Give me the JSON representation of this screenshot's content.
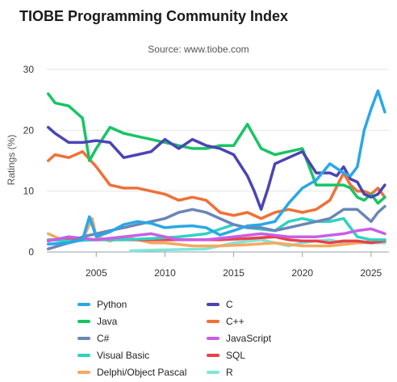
{
  "chart_data": {
    "type": "line",
    "title": "TIOBE Programming Community Index",
    "subtitle": "Source: www.tiobe.com",
    "xlabel": "",
    "ylabel": "Ratings (%)",
    "xlim": [
      2001.4,
      2026.3
    ],
    "ylim": [
      0,
      30
    ],
    "x_ticks": [
      2005,
      2010,
      2015,
      2020,
      2025
    ],
    "y_ticks": [
      0,
      10,
      20,
      30
    ],
    "grid": "horizontal",
    "legend_position": "bottom",
    "series": [
      {
        "name": "Python",
        "color": "#2aa7e8",
        "x": [
          2001.5,
          2003,
          2004,
          2004.5,
          2005,
          2006,
          2007,
          2008,
          2009,
          2010,
          2011,
          2012,
          2013,
          2014,
          2015,
          2016,
          2017,
          2018,
          2019,
          2020,
          2021,
          2022,
          2023,
          2023.5,
          2024,
          2024.5,
          2025,
          2025.5,
          2026
        ],
        "y": [
          1.3,
          1.5,
          2.0,
          5.8,
          2.5,
          3.3,
          4.5,
          5.0,
          4.7,
          4.0,
          4.2,
          4.3,
          4.0,
          2.8,
          3.5,
          4.3,
          4.5,
          5.0,
          8.0,
          10.5,
          11.8,
          14.5,
          13.0,
          12.5,
          14.0,
          20.0,
          23.5,
          26.5,
          23.0
        ]
      },
      {
        "name": "C",
        "color": "#4b44b5",
        "x": [
          2001.5,
          2002,
          2003,
          2004,
          2005,
          2006,
          2007,
          2008,
          2009,
          2010,
          2011,
          2012,
          2013,
          2014,
          2015,
          2016,
          2016.5,
          2017,
          2017.5,
          2018,
          2019,
          2020,
          2021,
          2022,
          2022.5,
          2023,
          2023.5,
          2024,
          2024.5,
          2025,
          2025.5,
          2026
        ],
        "y": [
          20.5,
          19.5,
          18.0,
          18.0,
          18.3,
          18.0,
          15.5,
          16.0,
          16.5,
          18.5,
          17.0,
          18.5,
          17.5,
          17.0,
          16.0,
          12.5,
          10.0,
          7.0,
          10.5,
          14.5,
          15.5,
          16.5,
          13.0,
          13.0,
          12.5,
          14.0,
          12.0,
          11.5,
          9.5,
          9.0,
          9.5,
          11.0
        ]
      },
      {
        "name": "Java",
        "color": "#18c464",
        "x": [
          2001.5,
          2002,
          2003,
          2004,
          2004.5,
          2005,
          2006,
          2007,
          2008,
          2009,
          2010,
          2011,
          2012,
          2013,
          2014,
          2015,
          2016,
          2017,
          2018,
          2019,
          2020,
          2021,
          2022,
          2023,
          2023.5,
          2024,
          2024.5,
          2025,
          2025.5,
          2026
        ],
        "y": [
          26.0,
          24.5,
          24.0,
          22.0,
          15.0,
          17.0,
          20.5,
          19.5,
          19.0,
          18.5,
          18.0,
          17.5,
          17.0,
          17.0,
          17.5,
          17.5,
          21.0,
          17.0,
          16.0,
          16.5,
          17.0,
          11.0,
          11.0,
          11.0,
          10.5,
          9.0,
          8.5,
          9.5,
          8.0,
          9.0
        ]
      },
      {
        "name": "C++",
        "color": "#f07036",
        "x": [
          2001.5,
          2002,
          2003,
          2004,
          2005,
          2006,
          2007,
          2008,
          2009,
          2010,
          2011,
          2012,
          2013,
          2014,
          2015,
          2016,
          2017,
          2018,
          2019,
          2020,
          2021,
          2022,
          2023,
          2023.5,
          2024,
          2024.5,
          2025,
          2025.5,
          2026
        ],
        "y": [
          15.0,
          16.0,
          15.5,
          16.5,
          14.0,
          11.0,
          10.5,
          10.5,
          10.0,
          9.5,
          8.5,
          9.0,
          8.5,
          6.5,
          6.0,
          6.5,
          5.5,
          6.5,
          7.0,
          6.5,
          7.0,
          8.5,
          13.0,
          11.0,
          10.0,
          10.0,
          9.5,
          10.5,
          9.0
        ]
      },
      {
        "name": "C#",
        "color": "#6a86b6",
        "x": [
          2001.5,
          2003,
          2004,
          2005,
          2006,
          2007,
          2008,
          2009,
          2010,
          2011,
          2012,
          2013,
          2014,
          2015,
          2016,
          2017,
          2018,
          2019,
          2020,
          2021,
          2022,
          2023,
          2024,
          2025,
          2025.5,
          2026
        ],
        "y": [
          0.5,
          1.5,
          2.5,
          3.0,
          3.5,
          4.0,
          4.5,
          5.0,
          5.5,
          6.5,
          7.0,
          6.5,
          5.5,
          4.5,
          4.0,
          4.0,
          3.5,
          4.0,
          4.5,
          5.0,
          5.5,
          7.0,
          7.0,
          5.0,
          6.5,
          7.5
        ]
      },
      {
        "name": "JavaScript",
        "color": "#c95ee6",
        "x": [
          2001.5,
          2003,
          2005,
          2007,
          2009,
          2011,
          2013,
          2015,
          2017,
          2019,
          2021,
          2023,
          2024,
          2025,
          2026
        ],
        "y": [
          1.8,
          2.5,
          2.0,
          2.5,
          3.0,
          2.0,
          2.0,
          2.5,
          3.0,
          2.5,
          2.5,
          3.0,
          3.5,
          3.8,
          3.0
        ]
      },
      {
        "name": "Visual Basic",
        "color": "#2ed3c0",
        "x": [
          2001.5,
          2003,
          2005,
          2007,
          2009,
          2011,
          2013,
          2015,
          2016,
          2018,
          2019,
          2020,
          2021,
          2022,
          2023,
          2024,
          2025,
          2026
        ],
        "y": [
          2.0,
          1.8,
          2.0,
          2.0,
          2.2,
          2.5,
          3.0,
          4.5,
          4.0,
          3.5,
          5.0,
          5.5,
          5.0,
          5.0,
          5.5,
          2.5,
          2.0,
          2.0
        ]
      },
      {
        "name": "SQL",
        "color": "#e8404a",
        "x": [
          2001.5,
          2005,
          2008,
          2010,
          2012,
          2014,
          2016,
          2018,
          2019,
          2020,
          2021,
          2022,
          2023,
          2024,
          2025,
          2026
        ],
        "y": [
          2.0,
          2.0,
          2.0,
          2.0,
          2.0,
          2.0,
          2.2,
          2.5,
          2.0,
          1.8,
          1.8,
          1.5,
          1.8,
          1.8,
          1.5,
          1.8
        ]
      },
      {
        "name": "Delphi/Object Pascal",
        "color": "#f4a95f",
        "x": [
          2001.5,
          2002,
          2003,
          2004,
          2004.7,
          2005,
          2006,
          2007,
          2008,
          2009,
          2010,
          2012,
          2014,
          2016,
          2018,
          2020,
          2022,
          2024,
          2026
        ],
        "y": [
          3.0,
          2.5,
          1.5,
          2.0,
          5.5,
          2.5,
          1.8,
          2.5,
          2.0,
          1.5,
          1.5,
          1.0,
          1.0,
          1.2,
          1.5,
          1.0,
          1.0,
          1.5,
          2.0
        ]
      },
      {
        "name": "R",
        "color": "#7ee6d8",
        "x": [
          2007.5,
          2009,
          2011,
          2013,
          2015,
          2017,
          2018,
          2019,
          2020,
          2021,
          2022,
          2023,
          2024,
          2025,
          2026
        ],
        "y": [
          0.2,
          0.3,
          0.4,
          0.5,
          1.5,
          2.0,
          1.5,
          1.0,
          1.5,
          1.8,
          2.0,
          1.5,
          1.5,
          1.5,
          1.5
        ]
      }
    ]
  },
  "legend_order": [
    "Python",
    "C",
    "Java",
    "C++",
    "C#",
    "JavaScript",
    "Visual Basic",
    "SQL",
    "Delphi/Object Pascal",
    "R"
  ]
}
